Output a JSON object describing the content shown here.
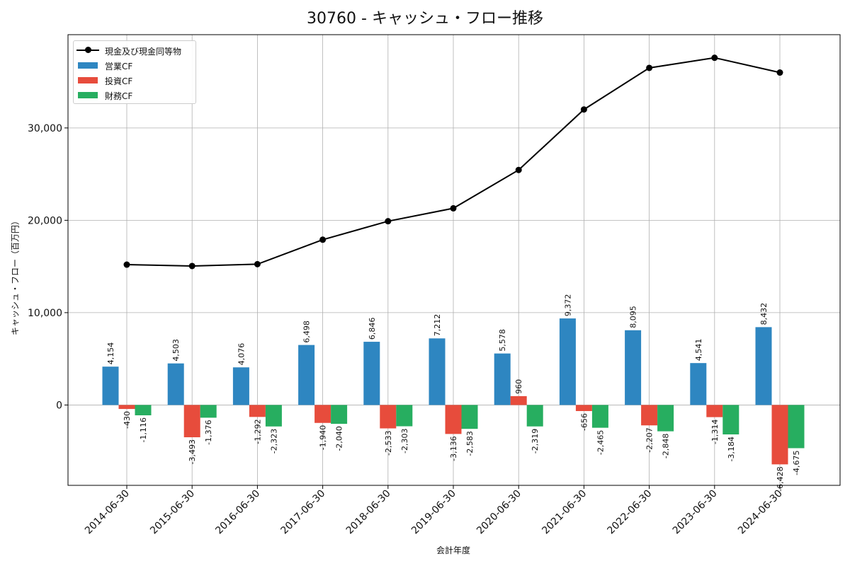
{
  "chart_data": {
    "type": "bar",
    "title": "30760 - キャッシュ・フロー推移",
    "xlabel": "会計年度",
    "ylabel": "キャッシュ・フロー（百万円）",
    "categories": [
      "2014-06-30",
      "2015-06-30",
      "2016-06-30",
      "2017-06-30",
      "2018-06-30",
      "2019-06-30",
      "2020-06-30",
      "2021-06-30",
      "2022-06-30",
      "2023-06-30",
      "2024-06-30"
    ],
    "series": [
      {
        "name": "営業CF",
        "type": "bar",
        "color": "#2e86c1",
        "values": [
          4154,
          4503,
          4076,
          6498,
          6846,
          7212,
          5578,
          9372,
          8095,
          4541,
          8432
        ]
      },
      {
        "name": "投資CF",
        "type": "bar",
        "color": "#e74c3c",
        "values": [
          -430,
          -3493,
          -1292,
          -1940,
          -2533,
          -3136,
          960,
          -656,
          -2207,
          -1314,
          -6428
        ]
      },
      {
        "name": "財務CF",
        "type": "bar",
        "color": "#27ae60",
        "values": [
          -1116,
          -1376,
          -2323,
          -2040,
          -2303,
          -2583,
          -2319,
          -2465,
          -2848,
          -3184,
          -4675
        ]
      },
      {
        "name": "現金及び現金同等物",
        "type": "line",
        "color": "#000000",
        "values": [
          15200,
          15050,
          15250,
          17900,
          19900,
          21300,
          25450,
          32000,
          36500,
          37600,
          36000
        ]
      }
    ],
    "ylim": [
      -8700,
      40100
    ],
    "yticks": [
      0,
      10000,
      20000,
      30000
    ],
    "ytick_labels": [
      "0",
      "10,000",
      "20,000",
      "30,000"
    ],
    "grid": true,
    "legend": "top-left"
  }
}
